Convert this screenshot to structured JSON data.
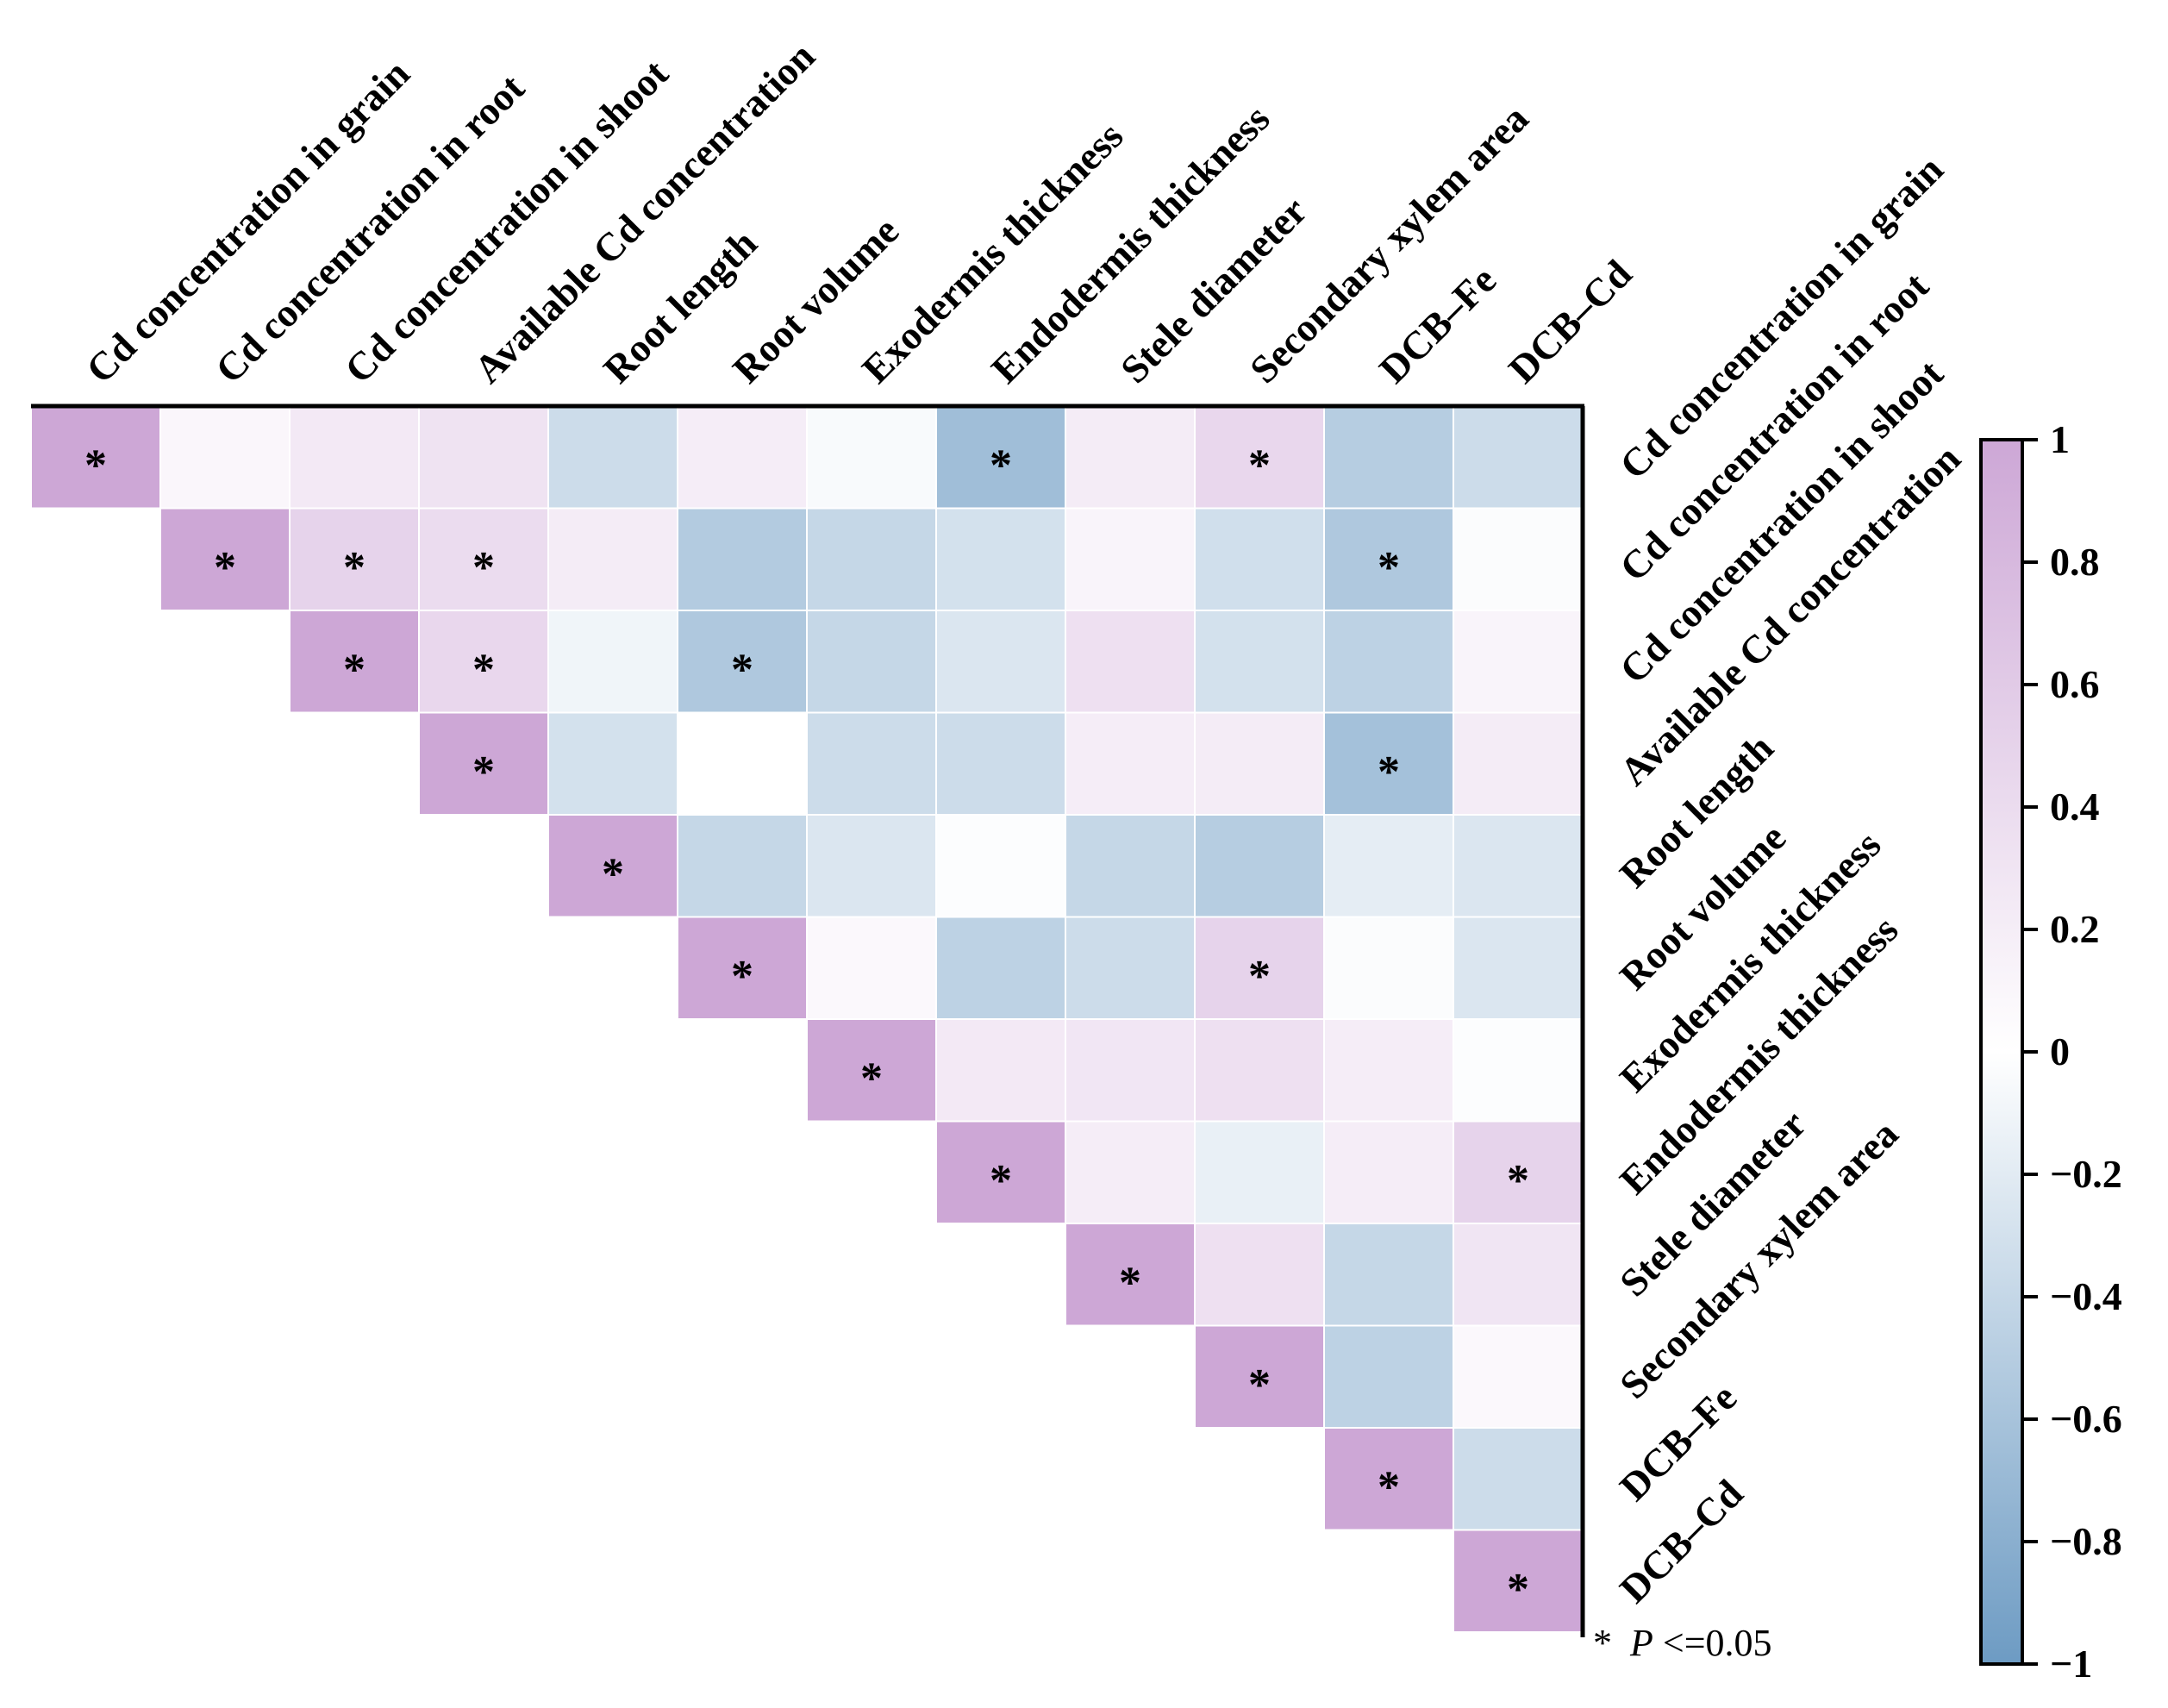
{
  "chart_data": {
    "type": "heatmap",
    "variables": [
      "Cd concentration in grain",
      "Cd concentration in root",
      "Cd concentration in shoot",
      "Available Cd concentration",
      "Root length",
      "Root volume",
      "Exodermis thickness",
      "Endodermis thickness",
      "Stele diameter",
      "Secondary xylem area",
      "DCB–Fe",
      "DCB–Cd"
    ],
    "layout": "upper-triangle",
    "matrix": [
      [
        1,
        0.1,
        0.25,
        0.32,
        -0.35,
        0.2,
        -0.05,
        -0.65,
        0.22,
        0.45,
        -0.5,
        -0.35
      ],
      [
        null,
        1,
        0.5,
        0.4,
        0.22,
        -0.52,
        -0.4,
        -0.3,
        0.12,
        -0.32,
        -0.55,
        -0.03
      ],
      [
        null,
        null,
        1,
        0.45,
        -0.1,
        -0.55,
        -0.4,
        -0.25,
        0.35,
        -0.3,
        -0.45,
        0.12
      ],
      [
        null,
        null,
        null,
        1,
        -0.3,
        0.0,
        -0.35,
        -0.35,
        0.2,
        0.22,
        -0.62,
        0.22
      ],
      [
        null,
        null,
        null,
        null,
        1,
        -0.4,
        -0.25,
        -0.02,
        -0.4,
        -0.5,
        -0.18,
        -0.25
      ],
      [
        null,
        null,
        null,
        null,
        null,
        1,
        0.08,
        -0.45,
        -0.35,
        0.5,
        -0.03,
        -0.25
      ],
      [
        null,
        null,
        null,
        null,
        null,
        null,
        1,
        0.25,
        0.28,
        0.35,
        0.2,
        -0.02
      ],
      [
        null,
        null,
        null,
        null,
        null,
        null,
        null,
        1,
        0.2,
        -0.15,
        0.2,
        0.5
      ],
      [
        null,
        null,
        null,
        null,
        null,
        null,
        null,
        null,
        1,
        0.35,
        -0.4,
        0.3
      ],
      [
        null,
        null,
        null,
        null,
        null,
        null,
        null,
        null,
        null,
        1,
        -0.45,
        0.08
      ],
      [
        null,
        null,
        null,
        null,
        null,
        null,
        null,
        null,
        null,
        null,
        1,
        -0.35
      ],
      [
        null,
        null,
        null,
        null,
        null,
        null,
        null,
        null,
        null,
        null,
        null,
        1
      ]
    ],
    "significance_marker": "*",
    "significant": [
      [
        0,
        0
      ],
      [
        0,
        7
      ],
      [
        0,
        9
      ],
      [
        1,
        1
      ],
      [
        1,
        2
      ],
      [
        1,
        3
      ],
      [
        1,
        10
      ],
      [
        2,
        2
      ],
      [
        2,
        3
      ],
      [
        2,
        5
      ],
      [
        3,
        3
      ],
      [
        3,
        10
      ],
      [
        4,
        4
      ],
      [
        5,
        5
      ],
      [
        5,
        9
      ],
      [
        6,
        6
      ],
      [
        7,
        7
      ],
      [
        7,
        11
      ],
      [
        8,
        8
      ],
      [
        9,
        9
      ],
      [
        10,
        10
      ],
      [
        11,
        11
      ]
    ],
    "colorbar": {
      "range": [
        -1,
        1
      ],
      "ticks": [
        1,
        0.8,
        0.6,
        0.4,
        0.2,
        0,
        -0.2,
        -0.4,
        -0.6,
        -0.8,
        -1
      ],
      "tick_labels": [
        "1",
        "0.8",
        "0.6",
        "0.4",
        "0.2",
        "0",
        "−0.2",
        "−0.4",
        "−0.6",
        "−0.8",
        "−1"
      ],
      "color_positive": "#cda7d6",
      "color_zero": "#ffffff",
      "color_negative": "#6d9bc3"
    },
    "note": {
      "marker": "*",
      "p_symbol": "P",
      "text": "<=0.05"
    }
  }
}
